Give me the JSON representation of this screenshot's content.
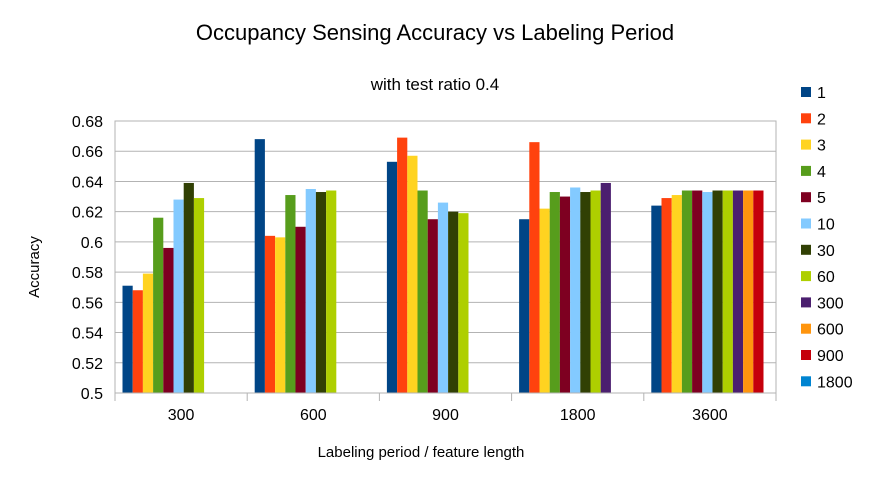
{
  "chart_data": {
    "type": "bar",
    "title": "Occupancy Sensing Accuracy vs Labeling Period",
    "subtitle": "with test ratio 0.4",
    "xlabel": "Labeling period / feature length",
    "ylabel": "Accuracy",
    "ylim": [
      0.5,
      0.68
    ],
    "yticks": [
      "0.5",
      "0.52",
      "0.54",
      "0.56",
      "0.58",
      "0.6",
      "0.62",
      "0.64",
      "0.66",
      "0.68"
    ],
    "grid": true,
    "legend_position": "right",
    "categories": [
      "300",
      "600",
      "900",
      "1800",
      "3600"
    ],
    "series": [
      {
        "name": "1",
        "color": "#004586",
        "values": [
          0.571,
          0.668,
          0.653,
          0.615,
          0.624
        ]
      },
      {
        "name": "2",
        "color": "#ff420e",
        "values": [
          0.568,
          0.604,
          0.669,
          0.666,
          0.629
        ]
      },
      {
        "name": "3",
        "color": "#ffd320",
        "values": [
          0.579,
          0.603,
          0.657,
          0.622,
          0.631
        ]
      },
      {
        "name": "4",
        "color": "#579d1c",
        "values": [
          0.616,
          0.631,
          0.634,
          0.633,
          0.634
        ]
      },
      {
        "name": "5",
        "color": "#7e0021",
        "values": [
          0.596,
          0.61,
          0.615,
          0.63,
          0.634
        ]
      },
      {
        "name": "10",
        "color": "#83caff",
        "values": [
          0.628,
          0.635,
          0.626,
          0.636,
          0.633
        ]
      },
      {
        "name": "30",
        "color": "#314004",
        "values": [
          0.639,
          0.633,
          0.62,
          0.633,
          0.634
        ]
      },
      {
        "name": "60",
        "color": "#aecf00",
        "values": [
          0.629,
          0.634,
          0.619,
          0.634,
          0.634
        ]
      },
      {
        "name": "300",
        "color": "#4b1f6f",
        "values": [
          null,
          null,
          null,
          0.639,
          0.634
        ]
      },
      {
        "name": "600",
        "color": "#ff950e",
        "values": [
          null,
          null,
          null,
          null,
          0.634
        ]
      },
      {
        "name": "900",
        "color": "#c5000b",
        "values": [
          null,
          null,
          null,
          null,
          0.634
        ]
      },
      {
        "name": "1800",
        "color": "#0084d1",
        "values": [
          null,
          null,
          null,
          null,
          null
        ]
      }
    ]
  }
}
